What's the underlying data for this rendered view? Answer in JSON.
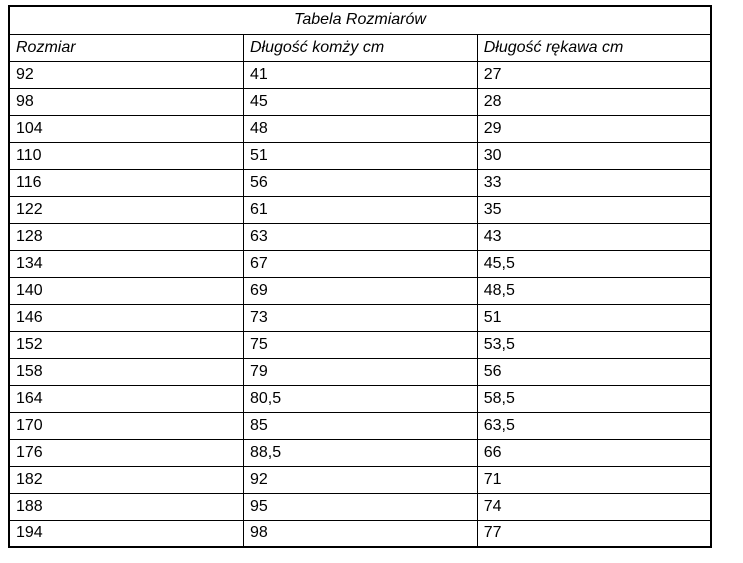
{
  "table": {
    "title": "Tabela Rozmiarów",
    "columns": [
      "Rozmiar",
      "Długość komży cm",
      "Długość rękawa cm"
    ],
    "rows": [
      [
        "92",
        "41",
        "27"
      ],
      [
        "98",
        "45",
        "28"
      ],
      [
        "104",
        "48",
        "29"
      ],
      [
        "110",
        "51",
        "30"
      ],
      [
        "116",
        "56",
        "33"
      ],
      [
        "122",
        "61",
        "35"
      ],
      [
        "128",
        "63",
        "43"
      ],
      [
        "134",
        "67",
        "45,5"
      ],
      [
        "140",
        "69",
        "48,5"
      ],
      [
        "146",
        "73",
        "51"
      ],
      [
        "152",
        "75",
        "53,5"
      ],
      [
        "158",
        "79",
        "56"
      ],
      [
        "164",
        "80,5",
        "58,5"
      ],
      [
        "170",
        "85",
        "63,5"
      ],
      [
        "176",
        "88,5",
        "66"
      ],
      [
        "182",
        "92",
        "71"
      ],
      [
        "188",
        "95",
        "74"
      ],
      [
        "194",
        "98",
        "77"
      ]
    ],
    "colors": {
      "border": "#000000",
      "text": "#000000",
      "background": "#ffffff"
    }
  }
}
